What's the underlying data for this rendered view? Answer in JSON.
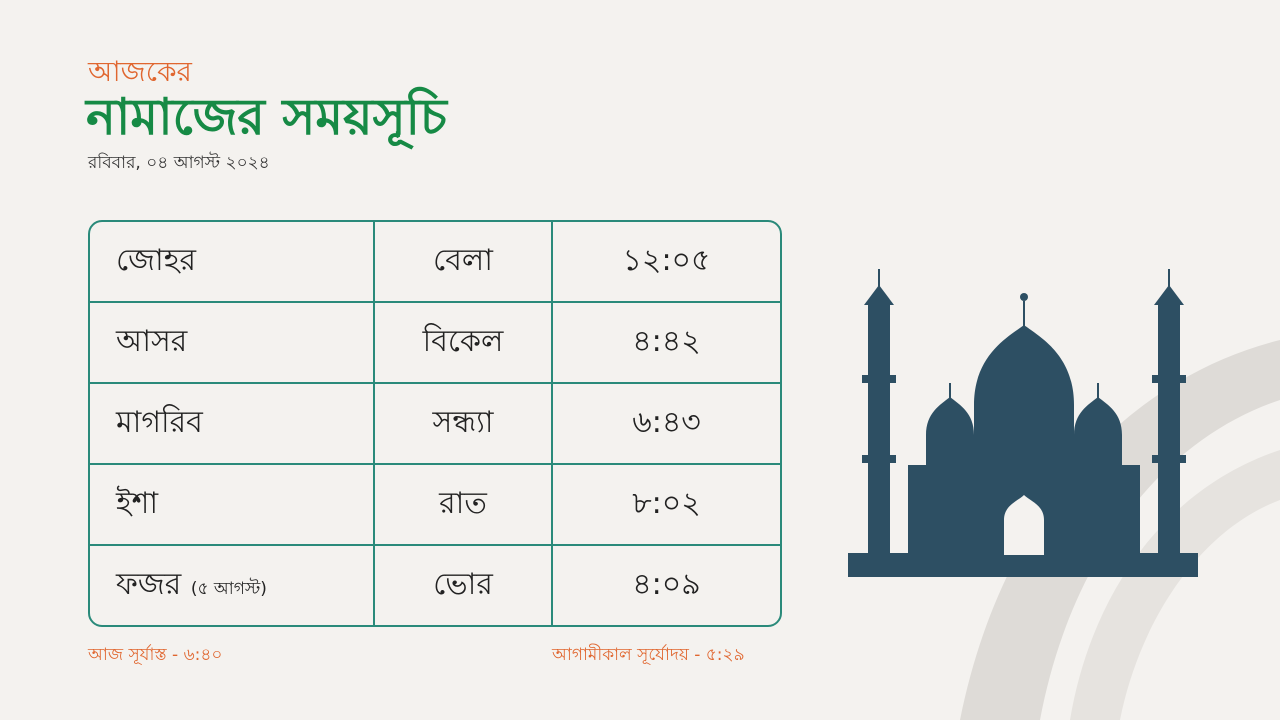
{
  "header": {
    "kicker": "আজকের",
    "title": "নামাজের সময়সূচি",
    "date": "রবিবার, ০৪ আগস্ট ২০২৪"
  },
  "table": {
    "rows": [
      {
        "name": "জোহর",
        "period": "বেলা",
        "time": "১২:০৫"
      },
      {
        "name": "আসর",
        "period": "বিকেল",
        "time": "৪:৪২"
      },
      {
        "name": "মাগরিব",
        "period": "সন্ধ্যা",
        "time": "৬:৪৩"
      },
      {
        "name": "ইশা",
        "period": "রাত",
        "time": "৮:০২"
      },
      {
        "name": "ফজর",
        "note": "(৫ আগস্ট)",
        "period": "ভোর",
        "time": "৪:০৯"
      }
    ]
  },
  "footer": {
    "sunset": "আজ সূর্যাস্ত - ৬:৪০",
    "sunrise": "আগামীকাল সূর্যোদয় -  ৫:২৯"
  },
  "colors": {
    "accent_orange": "#e0662f",
    "title_green": "#168a45",
    "table_border": "#2a8a7a",
    "mosque": "#2d4f63"
  },
  "icons": {
    "illustration": "mosque-icon"
  }
}
